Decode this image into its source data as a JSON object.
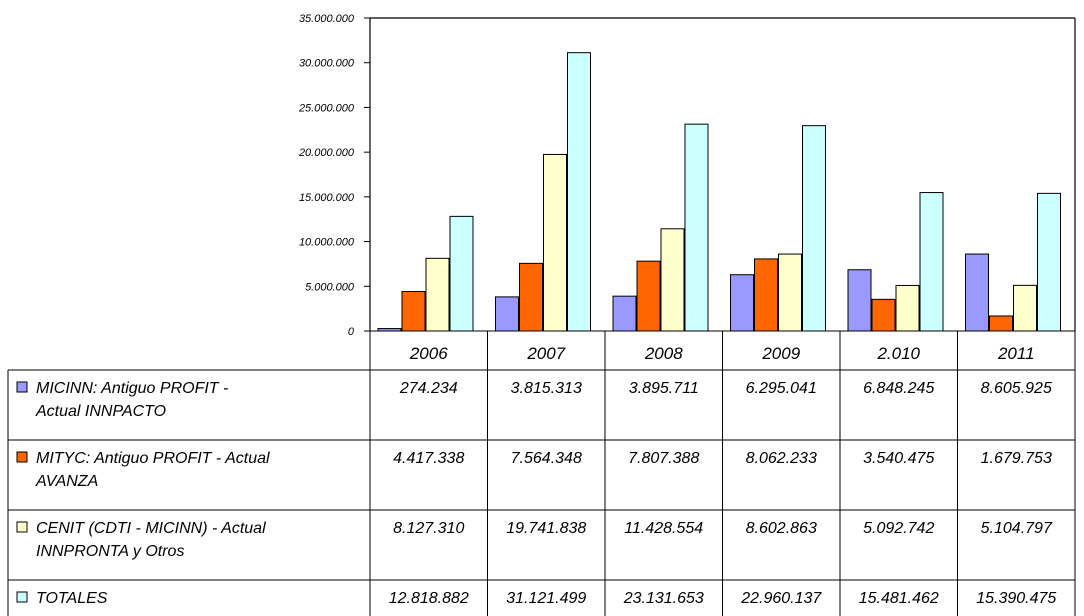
{
  "chart_data": {
    "type": "bar",
    "categories": [
      "2006",
      "2007",
      "2008",
      "2009",
      "2.010",
      "2011"
    ],
    "y_ticks": [
      "0",
      "5.000.000",
      "10.000.000",
      "15.000.000",
      "20.000.000",
      "25.000.000",
      "30.000.000",
      "35.000.000"
    ],
    "ylim": [
      0,
      35000000
    ],
    "grid": false,
    "legend": "data-table",
    "series": [
      {
        "name_lines": [
          "MICINN: Antiguo PROFIT -",
          "Actual INNPACTO"
        ],
        "color": "#9999FF",
        "values": [
          274234,
          3815313,
          3895711,
          6295041,
          6848245,
          8605925
        ],
        "labels": [
          "274.234",
          "3.815.313",
          "3.895.711",
          "6.295.041",
          "6.848.245",
          "8.605.925"
        ]
      },
      {
        "name_lines": [
          "MITYC: Antiguo PROFIT - Actual",
          "AVANZA"
        ],
        "color": "#FF6600",
        "values": [
          4417338,
          7564348,
          7807388,
          8062233,
          3540475,
          1679753
        ],
        "labels": [
          "4.417.338",
          "7.564.348",
          "7.807.388",
          "8.062.233",
          "3.540.475",
          "1.679.753"
        ]
      },
      {
        "name_lines": [
          "CENIT (CDTI - MICINN) - Actual",
          "INNPRONTA y Otros"
        ],
        "color": "#FFFFCC",
        "values": [
          8127310,
          19741838,
          11428554,
          8602863,
          5092742,
          5104797
        ],
        "labels": [
          "8.127.310",
          "19.741.838",
          "11.428.554",
          "8.602.863",
          "5.092.742",
          "5.104.797"
        ]
      },
      {
        "name_lines": [
          "TOTALES"
        ],
        "color": "#CCFFFF",
        "values": [
          12818882,
          31121499,
          23131653,
          22960137,
          15481462,
          15390475
        ],
        "labels": [
          "12.818.882",
          "31.121.499",
          "23.131.653",
          "22.960.137",
          "15.481.462",
          "15.390.475"
        ]
      }
    ]
  }
}
